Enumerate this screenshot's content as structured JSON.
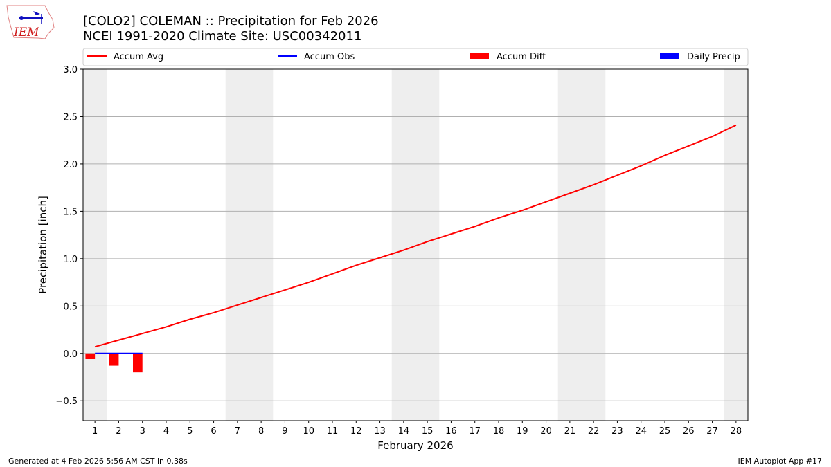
{
  "title_line1": "[COLO2] COLEMAN :: Precipitation for Feb 2026",
  "title_line2": "NCEI 1991-2020 Climate Site: USC00342011",
  "logo_text": "IEM",
  "footer_left": "Generated at 4 Feb 2026 5:56 AM CST in 0.38s",
  "footer_right": "IEM Autoplot App #17",
  "chart_data": {
    "type": "line",
    "xlabel": "February 2026",
    "ylabel": "Precipitation [inch]",
    "xlim": [
      0.5,
      28.5
    ],
    "ylim": [
      -0.71,
      3.0
    ],
    "yticks": [
      -0.5,
      0.0,
      0.5,
      1.0,
      1.5,
      2.0,
      2.5,
      3.0
    ],
    "ytick_labels": [
      "−0.5",
      "0.0",
      "0.5",
      "1.0",
      "1.5",
      "2.0",
      "2.5",
      "3.0"
    ],
    "x": [
      1,
      2,
      3,
      4,
      5,
      6,
      7,
      8,
      9,
      10,
      11,
      12,
      13,
      14,
      15,
      16,
      17,
      18,
      19,
      20,
      21,
      22,
      23,
      24,
      25,
      26,
      27,
      28
    ],
    "grid": "horizontal",
    "legend_placement": "top",
    "weekend_shading_days": [
      1,
      7,
      8,
      14,
      15,
      21,
      22,
      28
    ],
    "series": [
      {
        "name": "Accum Avg",
        "kind": "line",
        "color": "#ff0000",
        "x": [
          1,
          2,
          3,
          4,
          5,
          6,
          7,
          8,
          9,
          10,
          11,
          12,
          13,
          14,
          15,
          16,
          17,
          18,
          19,
          20,
          21,
          22,
          23,
          24,
          25,
          26,
          27,
          28
        ],
        "values": [
          0.07,
          0.14,
          0.21,
          0.28,
          0.36,
          0.43,
          0.51,
          0.59,
          0.67,
          0.75,
          0.84,
          0.93,
          1.01,
          1.09,
          1.18,
          1.26,
          1.34,
          1.43,
          1.51,
          1.6,
          1.69,
          1.78,
          1.88,
          1.98,
          2.09,
          2.19,
          2.29,
          2.41
        ]
      },
      {
        "name": "Accum Obs",
        "kind": "line",
        "color": "#0000ff",
        "x": [
          1,
          2,
          3
        ],
        "values": [
          0,
          0,
          0
        ]
      },
      {
        "name": "Accum Diff",
        "kind": "bar",
        "color": "#ff0000",
        "x": [
          1,
          2,
          3
        ],
        "values": [
          -0.06,
          -0.13,
          -0.2
        ]
      },
      {
        "name": "Daily Precip",
        "kind": "bar",
        "color": "#0000ff",
        "x": [
          1,
          2,
          3
        ],
        "values": [
          0,
          0,
          0
        ]
      }
    ]
  }
}
